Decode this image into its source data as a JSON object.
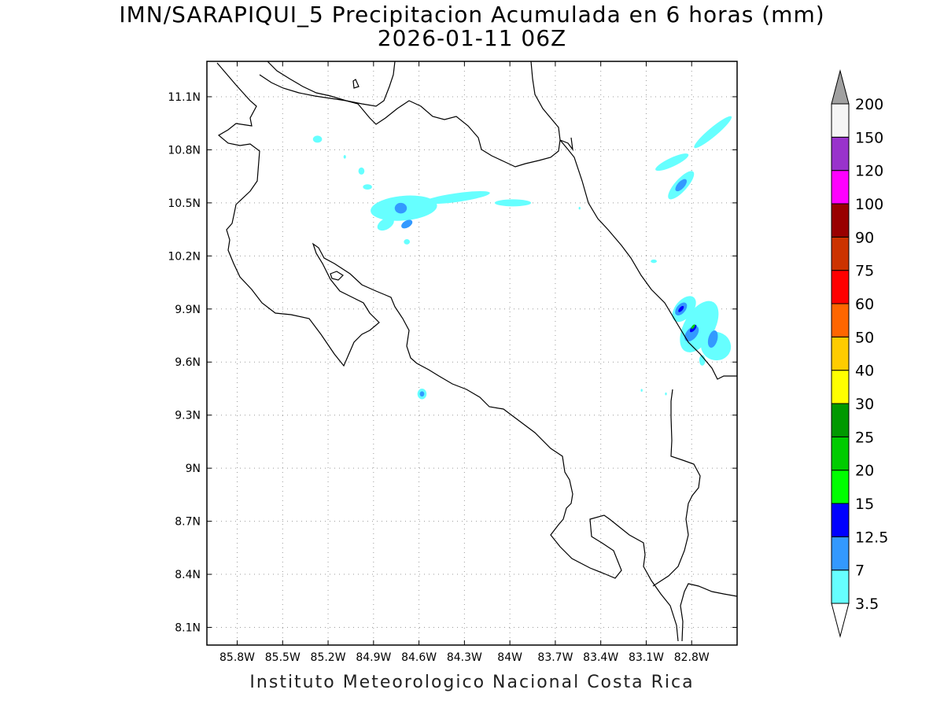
{
  "title": "IMN/SARAPIQUI_5 Precipitacion Acumulada en 6 horas (mm)",
  "subtitle": "2026-01-11 06Z",
  "footer": "Instituto Meteorologico Nacional Costa Rica",
  "map": {
    "lon_range": [
      -86.0,
      -82.5
    ],
    "lat_range": [
      8.0,
      11.3
    ],
    "grid": true,
    "x_ticks": [
      {
        "value": -85.8,
        "label": "85.8W"
      },
      {
        "value": -85.5,
        "label": "85.5W"
      },
      {
        "value": -85.2,
        "label": "85.2W"
      },
      {
        "value": -84.9,
        "label": "84.9W"
      },
      {
        "value": -84.6,
        "label": "84.6W"
      },
      {
        "value": -84.3,
        "label": "84.3W"
      },
      {
        "value": -84.0,
        "label": "84W"
      },
      {
        "value": -83.7,
        "label": "83.7W"
      },
      {
        "value": -83.4,
        "label": "83.4W"
      },
      {
        "value": -83.1,
        "label": "83.1W"
      },
      {
        "value": -82.8,
        "label": "82.8W"
      }
    ],
    "y_ticks": [
      {
        "value": 11.1,
        "label": "11.1N"
      },
      {
        "value": 10.8,
        "label": "10.8N"
      },
      {
        "value": 10.5,
        "label": "10.5N"
      },
      {
        "value": 10.2,
        "label": "10.2N"
      },
      {
        "value": 9.9,
        "label": "9.9N"
      },
      {
        "value": 9.6,
        "label": "9.6N"
      },
      {
        "value": 9.3,
        "label": "9.3N"
      },
      {
        "value": 9.0,
        "label": "9N"
      },
      {
        "value": 8.7,
        "label": "8.7N"
      },
      {
        "value": 8.4,
        "label": "8.4N"
      },
      {
        "value": 8.1,
        "label": "8.1N"
      }
    ],
    "precip_areas": [
      {
        "lon": -84.7,
        "lat": 10.47,
        "rx": 0.22,
        "ry": 0.07,
        "rot": -5,
        "color": "#66ffff"
      },
      {
        "lon": -84.35,
        "lat": 10.53,
        "rx": 0.22,
        "ry": 0.025,
        "rot": -8,
        "color": "#66ffff"
      },
      {
        "lon": -83.98,
        "lat": 10.5,
        "rx": 0.12,
        "ry": 0.02,
        "rot": 0,
        "color": "#66ffff"
      },
      {
        "lon": -84.82,
        "lat": 10.38,
        "rx": 0.06,
        "ry": 0.03,
        "rot": -30,
        "color": "#66ffff"
      },
      {
        "lon": -84.72,
        "lat": 10.47,
        "rx": 0.04,
        "ry": 0.03,
        "rot": 0,
        "color": "#3399ff"
      },
      {
        "lon": -84.68,
        "lat": 10.38,
        "rx": 0.04,
        "ry": 0.02,
        "rot": -30,
        "color": "#3399ff"
      },
      {
        "lon": -85.27,
        "lat": 10.86,
        "rx": 0.03,
        "ry": 0.02,
        "rot": 0,
        "color": "#66ffff"
      },
      {
        "lon": -84.98,
        "lat": 10.68,
        "rx": 0.02,
        "ry": 0.02,
        "rot": 0,
        "color": "#66ffff"
      },
      {
        "lon": -84.94,
        "lat": 10.59,
        "rx": 0.03,
        "ry": 0.015,
        "rot": 0,
        "color": "#66ffff"
      },
      {
        "lon": -84.68,
        "lat": 10.28,
        "rx": 0.02,
        "ry": 0.015,
        "rot": 0,
        "color": "#66ffff"
      },
      {
        "lon": -85.09,
        "lat": 10.76,
        "rx": 0.008,
        "ry": 0.01,
        "rot": 0,
        "color": "#66ffff"
      },
      {
        "lon": -84.58,
        "lat": 9.42,
        "rx": 0.03,
        "ry": 0.03,
        "rot": 0,
        "color": "#66ffff"
      },
      {
        "lon": -84.58,
        "lat": 9.42,
        "rx": 0.015,
        "ry": 0.015,
        "rot": 0,
        "color": "#3399ff"
      },
      {
        "lon": -82.66,
        "lat": 10.9,
        "rx": 0.16,
        "ry": 0.025,
        "rot": -40,
        "color": "#66ffff"
      },
      {
        "lon": -82.93,
        "lat": 10.73,
        "rx": 0.12,
        "ry": 0.025,
        "rot": -25,
        "color": "#66ffff"
      },
      {
        "lon": -82.87,
        "lat": 10.6,
        "rx": 0.12,
        "ry": 0.035,
        "rot": -48,
        "color": "#66ffff"
      },
      {
        "lon": -82.87,
        "lat": 10.6,
        "rx": 0.05,
        "ry": 0.02,
        "rot": -48,
        "color": "#3399ff"
      },
      {
        "lon": -83.05,
        "lat": 10.17,
        "rx": 0.02,
        "ry": 0.01,
        "rot": 0,
        "color": "#66ffff"
      },
      {
        "lon": -83.54,
        "lat": 10.47,
        "rx": 0.006,
        "ry": 0.008,
        "rot": 0,
        "color": "#66ffff"
      },
      {
        "lon": -82.85,
        "lat": 9.9,
        "rx": 0.1,
        "ry": 0.05,
        "rot": -50,
        "color": "#66ffff"
      },
      {
        "lon": -82.87,
        "lat": 9.9,
        "rx": 0.05,
        "ry": 0.025,
        "rot": -50,
        "color": "#3399ff"
      },
      {
        "lon": -82.87,
        "lat": 9.9,
        "rx": 0.025,
        "ry": 0.01,
        "rot": -50,
        "color": "#0000ff"
      },
      {
        "lon": -82.75,
        "lat": 9.8,
        "rx": 0.1,
        "ry": 0.16,
        "rot": 30,
        "color": "#66ffff"
      },
      {
        "lon": -82.64,
        "lat": 9.69,
        "rx": 0.1,
        "ry": 0.08,
        "rot": 20,
        "color": "#66ffff"
      },
      {
        "lon": -82.8,
        "lat": 9.76,
        "rx": 0.06,
        "ry": 0.03,
        "rot": -50,
        "color": "#3399ff"
      },
      {
        "lon": -82.66,
        "lat": 9.73,
        "rx": 0.03,
        "ry": 0.05,
        "rot": 15,
        "color": "#3399ff"
      },
      {
        "lon": -82.79,
        "lat": 9.79,
        "rx": 0.03,
        "ry": 0.012,
        "rot": -50,
        "color": "#0000ff"
      },
      {
        "lon": -82.79,
        "lat": 9.8,
        "rx": 0.018,
        "ry": 0.007,
        "rot": -50,
        "color": "#00cc00"
      },
      {
        "lon": -82.73,
        "lat": 9.61,
        "rx": 0.02,
        "ry": 0.03,
        "rot": 0,
        "color": "#66ffff"
      },
      {
        "lon": -83.13,
        "lat": 9.44,
        "rx": 0.006,
        "ry": 0.008,
        "rot": 0,
        "color": "#66ffff"
      },
      {
        "lon": -82.97,
        "lat": 9.42,
        "rx": 0.006,
        "ry": 0.008,
        "rot": 0,
        "color": "#66ffff"
      }
    ]
  },
  "colorbar": {
    "top_arrow_color": "#a0a0a0",
    "bottom_arrow_color": "#ffffff",
    "levels": [
      {
        "label": "3.5",
        "color": "#66ffff"
      },
      {
        "label": "7",
        "color": "#3399ff"
      },
      {
        "label": "12.5",
        "color": "#0000ff"
      },
      {
        "label": "15",
        "color": "#00ff00"
      },
      {
        "label": "20",
        "color": "#00cc00"
      },
      {
        "label": "25",
        "color": "#009900"
      },
      {
        "label": "30",
        "color": "#ffff00"
      },
      {
        "label": "40",
        "color": "#ffcc00"
      },
      {
        "label": "50",
        "color": "#ff6600"
      },
      {
        "label": "60",
        "color": "#ff0000"
      },
      {
        "label": "75",
        "color": "#cc3300"
      },
      {
        "label": "90",
        "color": "#990000"
      },
      {
        "label": "100",
        "color": "#ff00ff"
      },
      {
        "label": "120",
        "color": "#9933cc"
      },
      {
        "label": "150",
        "color": "#f5f5f5"
      },
      {
        "label": "200",
        "color": null
      }
    ]
  }
}
